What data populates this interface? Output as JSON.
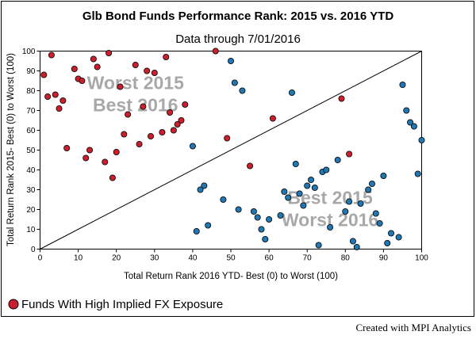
{
  "chart_data": {
    "type": "scatter",
    "title": "Glb Bond Funds Performance Rank: 2015 vs. 2016 YTD",
    "subtitle": "Data through 7/01/2016",
    "xlabel": "Total Return Rank 2016 YTD- Best (0) to Worst (100)",
    "ylabel": "Total Return Rank 2015- Best (0) to Worst (100)",
    "xlim": [
      0,
      100
    ],
    "ylim": [
      0,
      100
    ],
    "xticks": [
      0,
      10,
      20,
      30,
      40,
      50,
      60,
      70,
      80,
      90,
      100
    ],
    "yticks": [
      0,
      10,
      20,
      30,
      40,
      50,
      60,
      70,
      80,
      90,
      100
    ],
    "grid": false,
    "reference_line": {
      "from": [
        0,
        0
      ],
      "to": [
        100,
        100
      ],
      "color": "#000000"
    },
    "annotations": [
      {
        "lines": [
          "Worst 2015",
          "Best 2016"
        ],
        "x": 25,
        "y": 80
      },
      {
        "lines": [
          "Best 2015",
          "Worst 2016"
        ],
        "x": 76,
        "y": 22
      }
    ],
    "legend": {
      "position": "bottom-left",
      "entries": [
        {
          "label": "Funds With High Implied FX Exposure",
          "color": "#cc1f2e"
        }
      ]
    },
    "colors": {
      "red": "#cc1f2e",
      "blue": "#1f77b4"
    },
    "series": [
      {
        "name": "Funds With High Implied FX Exposure",
        "color": "#cc1f2e",
        "points": [
          [
            1,
            88
          ],
          [
            2,
            77
          ],
          [
            3,
            98
          ],
          [
            4,
            78
          ],
          [
            5,
            71
          ],
          [
            6,
            75
          ],
          [
            7,
            51
          ],
          [
            9,
            91
          ],
          [
            10,
            86
          ],
          [
            11,
            85
          ],
          [
            12,
            46
          ],
          [
            13,
            50
          ],
          [
            14,
            96
          ],
          [
            15,
            92
          ],
          [
            17,
            44
          ],
          [
            18,
            99
          ],
          [
            19,
            36
          ],
          [
            20,
            49
          ],
          [
            21,
            82
          ],
          [
            22,
            58
          ],
          [
            23,
            68
          ],
          [
            25,
            93
          ],
          [
            26,
            53
          ],
          [
            27,
            72
          ],
          [
            28,
            90
          ],
          [
            29,
            57
          ],
          [
            30,
            89
          ],
          [
            32,
            59
          ],
          [
            33,
            97
          ],
          [
            34,
            69
          ],
          [
            35,
            60
          ],
          [
            36,
            63
          ],
          [
            37,
            65
          ],
          [
            38,
            73
          ],
          [
            46,
            100
          ],
          [
            49,
            56
          ],
          [
            55,
            42
          ],
          [
            61,
            66
          ],
          [
            79,
            76
          ],
          [
            81,
            48
          ]
        ]
      },
      {
        "name": "",
        "color": "#1f77b4",
        "points": [
          [
            40,
            52
          ],
          [
            41,
            9
          ],
          [
            42,
            30
          ],
          [
            43,
            32
          ],
          [
            44,
            12
          ],
          [
            48,
            25
          ],
          [
            50,
            95
          ],
          [
            51,
            84
          ],
          [
            52,
            20
          ],
          [
            53,
            80
          ],
          [
            56,
            19
          ],
          [
            57,
            16
          ],
          [
            58,
            10
          ],
          [
            59,
            5
          ],
          [
            60,
            15
          ],
          [
            63,
            17
          ],
          [
            64,
            29
          ],
          [
            65,
            26
          ],
          [
            66,
            79
          ],
          [
            67,
            43
          ],
          [
            68,
            28
          ],
          [
            69,
            22
          ],
          [
            70,
            32
          ],
          [
            71,
            35
          ],
          [
            72,
            31
          ],
          [
            73,
            2
          ],
          [
            74,
            39
          ],
          [
            75,
            40
          ],
          [
            76,
            11
          ],
          [
            78,
            45
          ],
          [
            80,
            19
          ],
          [
            81,
            24
          ],
          [
            82,
            4
          ],
          [
            83,
            1
          ],
          [
            84,
            23
          ],
          [
            87,
            33
          ],
          [
            88,
            18
          ],
          [
            89,
            13
          ],
          [
            90,
            37
          ],
          [
            91,
            3
          ],
          [
            92,
            8
          ],
          [
            94,
            6
          ],
          [
            95,
            83
          ],
          [
            96,
            70
          ],
          [
            97,
            64
          ],
          [
            98,
            62
          ],
          [
            99,
            38
          ],
          [
            100,
            55
          ],
          [
            86,
            30
          ]
        ]
      }
    ]
  },
  "footer": {
    "credit": "Created with MPI Analytics"
  }
}
